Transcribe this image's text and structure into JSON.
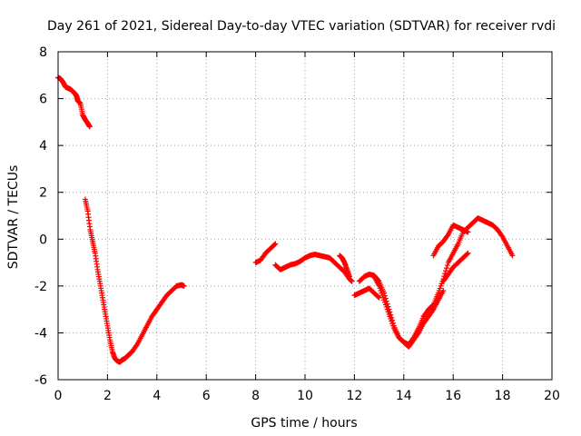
{
  "chart_data": {
    "type": "scatter",
    "title": "Day 261 of 2021, Sidereal Day-to-day VTEC variation (SDTVAR) for receiver rvdi",
    "xlabel": "GPS time / hours",
    "ylabel": "SDTVAR / TECUs",
    "xlim": [
      0,
      20
    ],
    "ylim": [
      -6,
      8
    ],
    "xticks": [
      "0",
      "2",
      "4",
      "6",
      "8",
      "10",
      "12",
      "14",
      "16",
      "18",
      "20"
    ],
    "yticks": [
      "-6",
      "-4",
      "-2",
      "0",
      "2",
      "4",
      "6",
      "8"
    ],
    "grid": true,
    "marker": "+",
    "color": "#ff0000",
    "series": [
      {
        "name": "seg1",
        "x": [
          0.0,
          0.1,
          0.2,
          0.3,
          0.4,
          0.5,
          0.6,
          0.7,
          0.75,
          0.8,
          0.9,
          1.0,
          1.1,
          1.2,
          1.28
        ],
        "y": [
          6.9,
          6.85,
          6.7,
          6.5,
          6.45,
          6.4,
          6.3,
          6.2,
          6.1,
          5.9,
          5.8,
          5.3,
          5.1,
          4.95,
          4.8
        ]
      },
      {
        "name": "seg2",
        "x": [
          1.1,
          1.2,
          1.3,
          1.4,
          1.5,
          1.6,
          1.7,
          1.8,
          1.9,
          2.0,
          2.1,
          2.2,
          2.3,
          2.4,
          2.5,
          2.6,
          2.7,
          2.8,
          2.9,
          3.0,
          3.2,
          3.4,
          3.6,
          3.8,
          4.0,
          4.2,
          4.4,
          4.6,
          4.8,
          5.0,
          5.1
        ],
        "y": [
          1.7,
          1.2,
          0.4,
          -0.1,
          -0.6,
          -1.3,
          -1.9,
          -2.5,
          -3.1,
          -3.7,
          -4.3,
          -4.8,
          -5.1,
          -5.2,
          -5.25,
          -5.15,
          -5.1,
          -5.0,
          -4.9,
          -4.8,
          -4.5,
          -4.1,
          -3.7,
          -3.3,
          -3.0,
          -2.7,
          -2.4,
          -2.2,
          -2.0,
          -1.95,
          -2.0
        ]
      },
      {
        "name": "seg3",
        "x": [
          8.0,
          8.2,
          8.4,
          8.6,
          8.8
        ],
        "y": [
          -1.0,
          -0.9,
          -0.6,
          -0.4,
          -0.2
        ]
      },
      {
        "name": "seg4",
        "x": [
          8.8,
          9.0,
          9.2,
          9.4,
          9.6,
          9.8,
          10.0,
          10.2,
          10.4,
          10.6,
          10.8,
          11.0,
          11.2,
          11.4,
          11.6,
          11.8,
          11.9
        ],
        "y": [
          -1.1,
          -1.3,
          -1.2,
          -1.1,
          -1.05,
          -0.95,
          -0.8,
          -0.7,
          -0.65,
          -0.7,
          -0.75,
          -0.8,
          -1.0,
          -1.2,
          -1.4,
          -1.7,
          -1.8
        ]
      },
      {
        "name": "seg5",
        "x": [
          11.4,
          11.5,
          11.6,
          11.7,
          11.8
        ],
        "y": [
          -0.7,
          -0.8,
          -1.0,
          -1.3,
          -1.6
        ]
      },
      {
        "name": "seg6",
        "x": [
          12.0,
          12.2,
          12.4,
          12.6,
          12.8,
          13.0
        ],
        "y": [
          -2.4,
          -2.3,
          -2.2,
          -2.1,
          -2.3,
          -2.5
        ]
      },
      {
        "name": "seg7",
        "x": [
          12.2,
          12.4,
          12.6,
          12.8,
          13.0,
          13.2,
          13.4,
          13.6,
          13.8,
          14.0,
          14.2,
          14.4,
          14.6,
          14.8,
          15.0,
          15.2,
          15.4,
          15.6,
          15.8,
          16.0,
          16.2,
          16.4,
          16.6,
          16.8,
          17.0,
          17.2,
          17.4,
          17.6,
          17.8,
          18.0,
          18.2,
          18.4
        ],
        "y": [
          -1.8,
          -1.6,
          -1.5,
          -1.55,
          -1.8,
          -2.3,
          -3.0,
          -3.7,
          -4.2,
          -4.4,
          -4.5,
          -4.2,
          -3.8,
          -3.3,
          -3.0,
          -2.8,
          -2.3,
          -1.7,
          -1.0,
          -0.6,
          -0.2,
          0.3,
          0.5,
          0.7,
          0.9,
          0.8,
          0.7,
          0.6,
          0.4,
          0.1,
          -0.3,
          -0.7
        ]
      },
      {
        "name": "seg8",
        "x": [
          12.8,
          13.0,
          13.2,
          13.4,
          13.6,
          13.8,
          14.0,
          14.2,
          14.4,
          14.6,
          14.8,
          15.0,
          15.2,
          15.4,
          15.6
        ],
        "y": [
          -1.6,
          -2.0,
          -2.6,
          -3.2,
          -3.8,
          -4.2,
          -4.4,
          -4.6,
          -4.3,
          -4.0,
          -3.6,
          -3.3,
          -3.0,
          -2.6,
          -2.2
        ]
      },
      {
        "name": "seg9",
        "x": [
          15.2,
          15.4,
          15.6,
          15.8,
          16.0,
          16.2,
          16.4,
          16.6
        ],
        "y": [
          -0.7,
          -0.3,
          -0.1,
          0.2,
          0.6,
          0.5,
          0.4,
          0.3
        ]
      },
      {
        "name": "seg10",
        "x": [
          15.6,
          15.8,
          16.0,
          16.2,
          16.4,
          16.6
        ],
        "y": [
          -1.8,
          -1.5,
          -1.2,
          -1.0,
          -0.8,
          -0.6
        ]
      }
    ]
  }
}
